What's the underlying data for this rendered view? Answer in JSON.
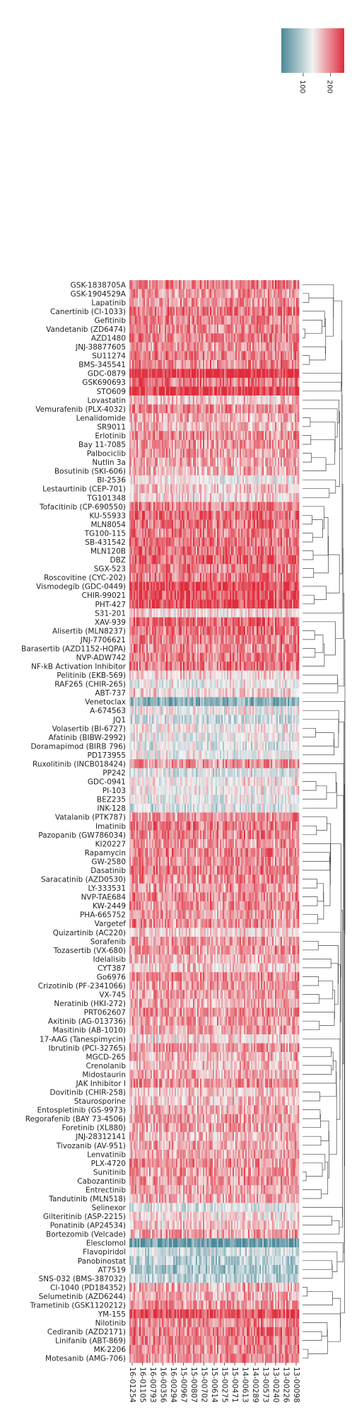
{
  "chart_data": {
    "type": "heatmap",
    "title": "",
    "xlabel": "",
    "ylabel": "",
    "colormap": {
      "low": "#4a8a98",
      "mid": "#f3f3f3",
      "high": "#e02c3c"
    },
    "colorbar": {
      "range": [
        20,
        250
      ],
      "ticks": [
        100,
        200
      ],
      "tick_labels": [
        "100",
        "200"
      ]
    },
    "dendrogram": "right",
    "x_tick_labels": [
      "16-01254",
      "16-01105",
      "16-00793",
      "16-00356",
      "16-00294",
      "15-00967",
      "15-00807",
      "15-00702",
      "15-00614",
      "15-00275",
      "15-00471",
      "14-00613",
      "14-00289",
      "13-00573",
      "13-00240",
      "13-00226",
      "13-00098"
    ],
    "y_tick_labels": [
      "GSK-1838705A",
      "GSK-1904529A",
      "Lapatinib",
      "Canertinib (CI-1033)",
      "Gefitinib",
      "Vandetanib (ZD6474)",
      "AZD1480",
      "JNJ-38877605",
      "SU11274",
      "BMS-345541",
      "GDC-0879",
      "GSK690693",
      "STO609",
      "Lovastatin",
      "Vemurafenib (PLX-4032)",
      "Lenalidomide",
      "SR9011",
      "Erlotinib",
      "Bay 11-7085",
      "Palbociclib",
      "Nutlin 3a",
      "Bosutinib (SKI-606)",
      "BI-2536",
      "Lestaurtinib (CEP-701)",
      "TG101348",
      "Tofacitinib (CP-690550)",
      "KU-55933",
      "MLN8054",
      "TG100-115",
      "SB-431542",
      "MLN120B",
      "DBZ",
      "SGX-523",
      "Roscovitine (CYC-202)",
      "Vismodegib (GDC-0449)",
      "CHIR-99021",
      "PHT-427",
      "S31-201",
      "XAV-939",
      "Alisertib (MLN8237)",
      "JNJ-7706621",
      "Barasertib (AZD1152-HQPA)",
      "NVP-ADW742",
      "NF-kB Activation Inhibitor",
      "Pelitinib (EKB-569)",
      "RAF265 (CHIR-265)",
      "ABT-737",
      "Venetoclax",
      "A-674563",
      "JQ1",
      "Volasertib (BI-6727)",
      "Afatinib (BIBW-2992)",
      "Doramapimod (BIRB 796)",
      "PD173955",
      "Ruxolitinib (INCB018424)",
      "PP242",
      "GDC-0941",
      "PI-103",
      "BEZ235",
      "INK-128",
      "Vatalanib (PTK787)",
      "Imatinib",
      "Pazopanib (GW786034)",
      "KI20227",
      "Rapamycin",
      "GW-2580",
      "Dasatinib",
      "Saracatinib (AZD0530)",
      "LY-333531",
      "NVP-TAE684",
      "KW-2449",
      "PHA-665752",
      "Vargetef",
      "Quizartinib (AC220)",
      "Sorafenib",
      "Tozasertib (VX-680)",
      "Idelalisib",
      "CYT387",
      "Go6976",
      "Crizotinib (PF-2341066)",
      "VX-745",
      "Neratinib (HKI-272)",
      "PRT062607",
      "Axitinib (AG-013736)",
      "Masitinib (AB-1010)",
      "17-AAG (Tanespimycin)",
      "Ibrutinib (PCI-32765)",
      "MGCD-265",
      "Crenolanib",
      "Midostaurin",
      "JAK Inhibitor I",
      "Dovitinib (CHIR-258)",
      "Staurosporine",
      "Entospletinib (GS-9973)",
      "Regorafenib (BAY 73-4506)",
      "Foretinib (XL880)",
      "JNJ-28312141",
      "Tivozanib (AV-951)",
      "Lenvatinib",
      "PLX-4720",
      "Sunitinib",
      "Cabozantinib",
      "Entrectinib",
      "Tandutinib (MLN518)",
      "Selinexor",
      "Gilteritinib (ASP-2215)",
      "Ponatinib (AP24534)",
      "Bortezomib (Velcade)",
      "Elesclomol",
      "Flavopiridol",
      "Panobinostat",
      "AT7519",
      "SNS-032 (BMS-387032)",
      "CI-1040 (PD184352)",
      "Selumetinib (AZD6244)",
      "Trametinib (GSK1120212)",
      "YM-155",
      "Nilotinib",
      "Cediranib (AZD2171)",
      "Linifanib (ABT-869)",
      "MK-2206",
      "Motesanib (AMG-706)"
    ],
    "row_mean_values": [
      200,
      185,
      190,
      205,
      195,
      200,
      200,
      190,
      200,
      195,
      245,
      205,
      240,
      160,
      195,
      175,
      170,
      190,
      185,
      180,
      175,
      170,
      140,
      160,
      150,
      200,
      210,
      205,
      200,
      205,
      210,
      215,
      200,
      205,
      235,
      225,
      230,
      150,
      215,
      205,
      200,
      195,
      200,
      205,
      150,
      130,
      150,
      60,
      135,
      110,
      135,
      130,
      120,
      135,
      190,
      120,
      140,
      135,
      130,
      115,
      190,
      200,
      195,
      185,
      200,
      190,
      200,
      190,
      185,
      195,
      190,
      185,
      190,
      150,
      185,
      190,
      170,
      160,
      190,
      185,
      180,
      175,
      195,
      185,
      180,
      150,
      185,
      175,
      165,
      175,
      190,
      160,
      165,
      180,
      185,
      180,
      170,
      175,
      180,
      190,
      185,
      185,
      180,
      175,
      120,
      150,
      160,
      180,
      40,
      110,
      95,
      85,
      100,
      175,
      175,
      185,
      230,
      195,
      205,
      200,
      195,
      195
    ],
    "num_columns": 120,
    "column_variation": 50
  }
}
